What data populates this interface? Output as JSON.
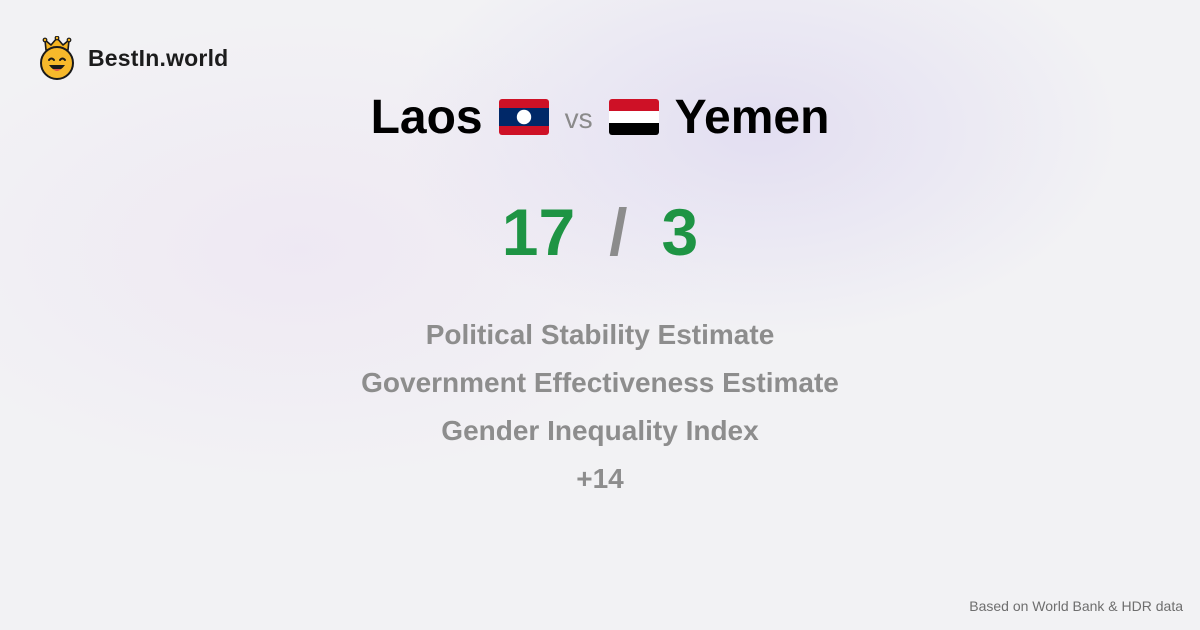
{
  "brand": {
    "name": "BestIn.world",
    "logo_icon": "crowned-smiley-icon"
  },
  "comparison": {
    "left": {
      "name": "Laos",
      "flag_icon": "laos-flag-icon",
      "score": "17"
    },
    "vs_label": "vs",
    "right": {
      "name": "Yemen",
      "flag_icon": "yemen-flag-icon",
      "score": "3"
    },
    "separator": "/"
  },
  "metrics": [
    "Political Stability Estimate",
    "Government Effectiveness Estimate",
    "Gender Inequality Index"
  ],
  "more_label": "+14",
  "footer": {
    "source": "Based on World Bank & HDR data"
  },
  "colors": {
    "score": "#1e9444",
    "muted": "#8d8d8d",
    "accent_gold": "#f2b52a"
  }
}
